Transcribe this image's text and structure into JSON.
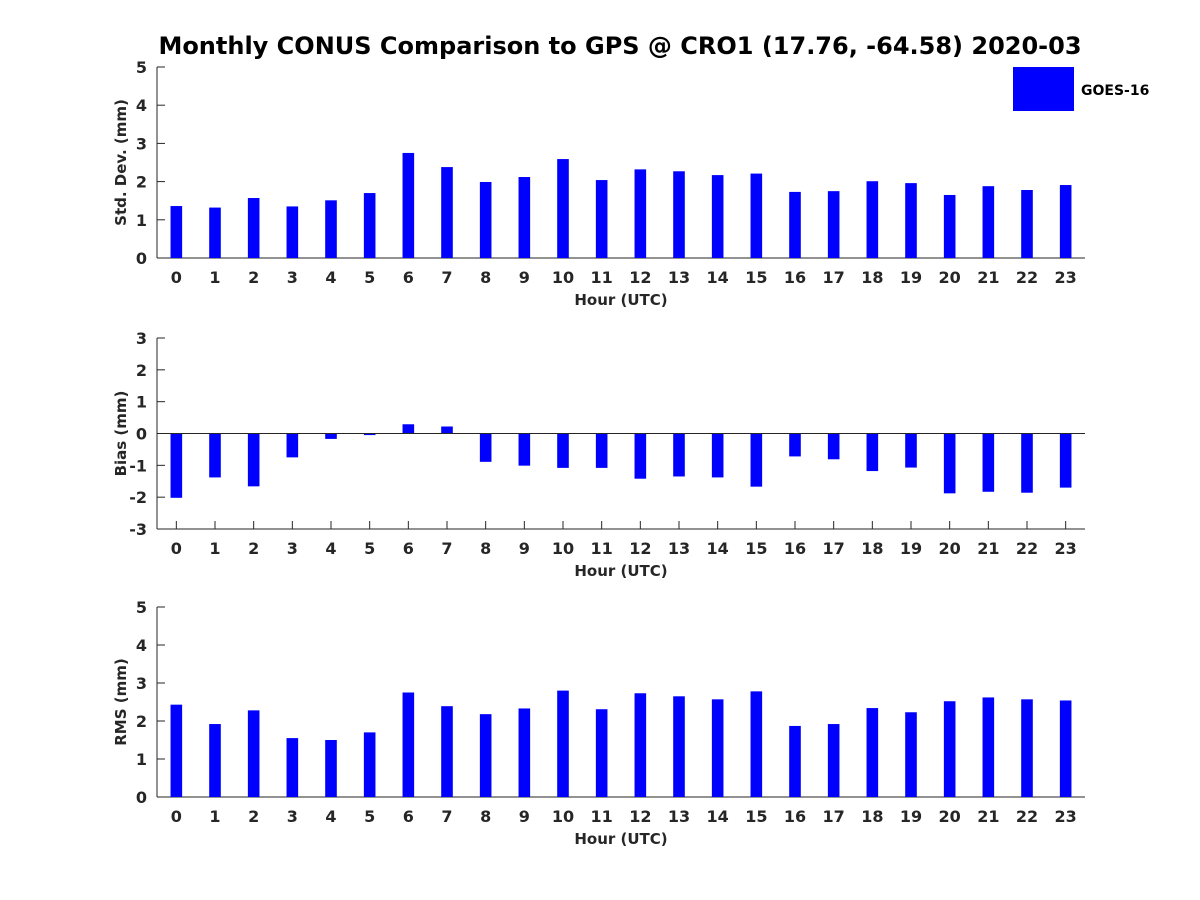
{
  "title": "Monthly CONUS Comparison to GPS @ CRO1 (17.76, -64.58) 2020-03",
  "legend": {
    "label": "GOES-16",
    "color": "#0000ff",
    "placement": "top-right"
  },
  "chart_data": [
    {
      "type": "bar",
      "id": "std",
      "categories": [
        "0",
        "1",
        "2",
        "3",
        "4",
        "5",
        "6",
        "7",
        "8",
        "9",
        "10",
        "11",
        "12",
        "13",
        "14",
        "15",
        "16",
        "17",
        "18",
        "19",
        "20",
        "21",
        "22",
        "23"
      ],
      "series": [
        {
          "name": "GOES-16",
          "color": "#0000ff",
          "values": [
            1.36,
            1.32,
            1.57,
            1.35,
            1.51,
            1.7,
            2.75,
            2.38,
            1.99,
            2.12,
            2.59,
            2.04,
            2.32,
            2.27,
            2.17,
            2.21,
            1.73,
            1.75,
            2.01,
            1.96,
            1.65,
            1.88,
            1.78,
            1.91
          ]
        }
      ],
      "xlabel": "Hour (UTC)",
      "ylabel": "Std. Dev. (mm)",
      "ylim": [
        0,
        5
      ],
      "yticks": [
        0,
        1,
        2,
        3,
        4,
        5
      ],
      "grid": false
    },
    {
      "type": "bar",
      "id": "bias",
      "categories": [
        "0",
        "1",
        "2",
        "3",
        "4",
        "5",
        "6",
        "7",
        "8",
        "9",
        "10",
        "11",
        "12",
        "13",
        "14",
        "15",
        "16",
        "17",
        "18",
        "19",
        "20",
        "21",
        "22",
        "23"
      ],
      "series": [
        {
          "name": "GOES-16",
          "color": "#0000ff",
          "values": [
            -2.02,
            -1.38,
            -1.66,
            -0.75,
            -0.17,
            -0.05,
            0.29,
            0.22,
            -0.89,
            -1.01,
            -1.08,
            -1.08,
            -1.42,
            -1.35,
            -1.38,
            -1.67,
            -0.72,
            -0.81,
            -1.18,
            -1.07,
            -1.88,
            -1.83,
            -1.86,
            -1.7
          ]
        }
      ],
      "xlabel": "Hour (UTC)",
      "ylabel": "Bias (mm)",
      "ylim": [
        -3,
        3
      ],
      "yticks": [
        -3,
        -2,
        -1,
        0,
        1,
        2,
        3
      ],
      "zero_line": true,
      "grid": false
    },
    {
      "type": "bar",
      "id": "rms",
      "categories": [
        "0",
        "1",
        "2",
        "3",
        "4",
        "5",
        "6",
        "7",
        "8",
        "9",
        "10",
        "11",
        "12",
        "13",
        "14",
        "15",
        "16",
        "17",
        "18",
        "19",
        "20",
        "21",
        "22",
        "23"
      ],
      "series": [
        {
          "name": "GOES-16",
          "color": "#0000ff",
          "values": [
            2.43,
            1.92,
            2.28,
            1.55,
            1.5,
            1.7,
            2.75,
            2.39,
            2.18,
            2.33,
            2.8,
            2.31,
            2.73,
            2.65,
            2.57,
            2.78,
            1.87,
            1.92,
            2.34,
            2.23,
            2.52,
            2.62,
            2.57,
            2.54
          ]
        }
      ],
      "xlabel": "Hour (UTC)",
      "ylabel": "RMS (mm)",
      "ylim": [
        0,
        5
      ],
      "yticks": [
        0,
        1,
        2,
        3,
        4,
        5
      ],
      "grid": false
    }
  ]
}
